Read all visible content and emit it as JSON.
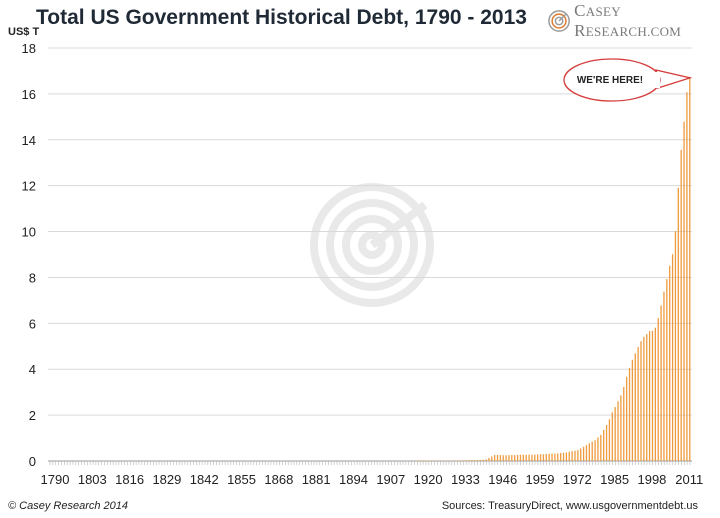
{
  "header": {
    "title": "Total US Government Historical Debt, 1790 - 2013",
    "brand_first": "C",
    "brand_rest": "ASEY",
    "brand_first2": "R",
    "brand_rest2": "ESEARCH.COM"
  },
  "footer": {
    "copyright": "© Casey Research 2014",
    "sources": "Sources: TreasuryDirect,  www.usgovernmentdebt.us"
  },
  "colors": {
    "bar": "#ef9a3c",
    "grid": "#d9d9d9",
    "callout": "#d63a3a",
    "watermark": "#d8d8d8"
  },
  "chart_data": {
    "type": "bar",
    "ylabel": "US$ T",
    "ylim": [
      0,
      18
    ],
    "yticks": [
      0,
      2,
      4,
      6,
      8,
      10,
      12,
      14,
      16,
      18
    ],
    "xlim": [
      1790,
      2013
    ],
    "xticks": [
      1790,
      1803,
      1816,
      1829,
      1842,
      1855,
      1868,
      1881,
      1894,
      1907,
      1920,
      1933,
      1946,
      1959,
      1972,
      1985,
      1998,
      2011
    ],
    "grid": "horizontal",
    "annotation": {
      "text": "WE'RE HERE!",
      "year": 2013,
      "value": 16.7
    },
    "series": [
      {
        "values": [
          {
            "x": 1790,
            "y": 8e-05
          },
          {
            "x": 1800,
            "y": 8e-05
          },
          {
            "x": 1815,
            "y": 0.00013
          },
          {
            "x": 1835,
            "y": 0.0
          },
          {
            "x": 1860,
            "y": 6e-05
          },
          {
            "x": 1866,
            "y": 0.0027
          },
          {
            "x": 1900,
            "y": 0.0021
          },
          {
            "x": 1916,
            "y": 0.0012
          },
          {
            "x": 1919,
            "y": 0.025
          },
          {
            "x": 1930,
            "y": 0.016
          },
          {
            "x": 1935,
            "y": 0.029
          },
          {
            "x": 1940,
            "y": 0.043
          },
          {
            "x": 1941,
            "y": 0.049
          },
          {
            "x": 1942,
            "y": 0.072
          },
          {
            "x": 1943,
            "y": 0.137
          },
          {
            "x": 1944,
            "y": 0.201
          },
          {
            "x": 1945,
            "y": 0.259
          },
          {
            "x": 1946,
            "y": 0.269
          },
          {
            "x": 1947,
            "y": 0.258
          },
          {
            "x": 1948,
            "y": 0.252
          },
          {
            "x": 1949,
            "y": 0.253
          },
          {
            "x": 1950,
            "y": 0.257
          },
          {
            "x": 1952,
            "y": 0.259
          },
          {
            "x": 1954,
            "y": 0.271
          },
          {
            "x": 1956,
            "y": 0.273
          },
          {
            "x": 1958,
            "y": 0.276
          },
          {
            "x": 1960,
            "y": 0.286
          },
          {
            "x": 1962,
            "y": 0.298
          },
          {
            "x": 1964,
            "y": 0.312
          },
          {
            "x": 1966,
            "y": 0.32
          },
          {
            "x": 1968,
            "y": 0.348
          },
          {
            "x": 1970,
            "y": 0.371
          },
          {
            "x": 1972,
            "y": 0.427
          },
          {
            "x": 1974,
            "y": 0.475
          },
          {
            "x": 1976,
            "y": 0.62
          },
          {
            "x": 1978,
            "y": 0.772
          },
          {
            "x": 1980,
            "y": 0.908
          },
          {
            "x": 1982,
            "y": 1.14
          },
          {
            "x": 1984,
            "y": 1.57
          },
          {
            "x": 1985,
            "y": 1.82
          },
          {
            "x": 1986,
            "y": 2.12
          },
          {
            "x": 1987,
            "y": 2.35
          },
          {
            "x": 1988,
            "y": 2.6
          },
          {
            "x": 1989,
            "y": 2.86
          },
          {
            "x": 1990,
            "y": 3.23
          },
          {
            "x": 1991,
            "y": 3.67
          },
          {
            "x": 1992,
            "y": 4.06
          },
          {
            "x": 1993,
            "y": 4.41
          },
          {
            "x": 1994,
            "y": 4.69
          },
          {
            "x": 1995,
            "y": 4.97
          },
          {
            "x": 1996,
            "y": 5.22
          },
          {
            "x": 1997,
            "y": 5.41
          },
          {
            "x": 1998,
            "y": 5.53
          },
          {
            "x": 1999,
            "y": 5.66
          },
          {
            "x": 2000,
            "y": 5.67
          },
          {
            "x": 2001,
            "y": 5.81
          },
          {
            "x": 2002,
            "y": 6.23
          },
          {
            "x": 2003,
            "y": 6.78
          },
          {
            "x": 2004,
            "y": 7.38
          },
          {
            "x": 2005,
            "y": 7.93
          },
          {
            "x": 2006,
            "y": 8.51
          },
          {
            "x": 2007,
            "y": 9.01
          },
          {
            "x": 2008,
            "y": 10.02
          },
          {
            "x": 2009,
            "y": 11.91
          },
          {
            "x": 2010,
            "y": 13.56
          },
          {
            "x": 2011,
            "y": 14.79
          },
          {
            "x": 2012,
            "y": 16.07
          },
          {
            "x": 2013,
            "y": 16.74
          }
        ]
      }
    ]
  }
}
